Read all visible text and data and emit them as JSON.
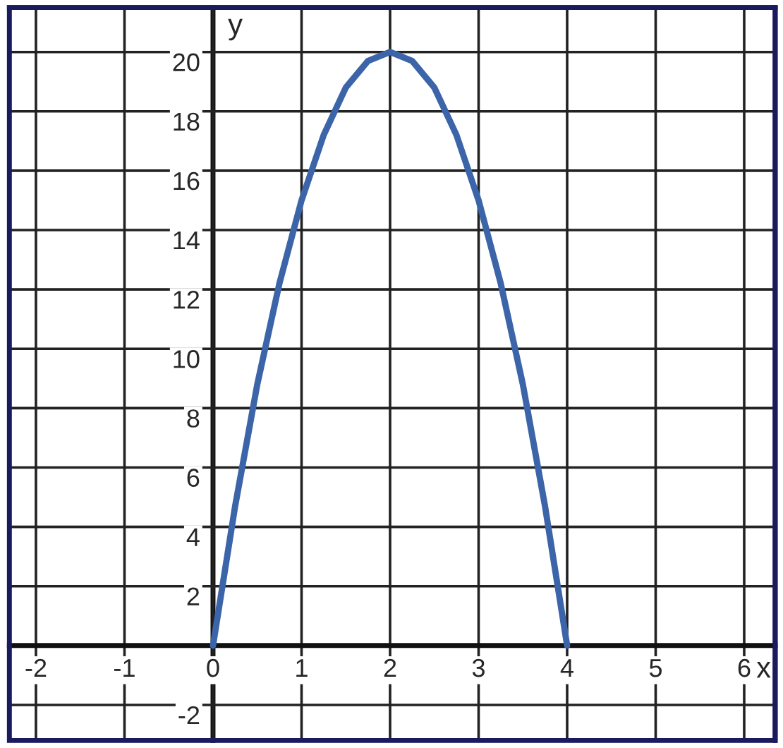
{
  "chart_data": {
    "type": "line",
    "xlabel": "x",
    "ylabel": "y",
    "x": [
      0,
      0.25,
      0.5,
      0.75,
      1,
      1.25,
      1.5,
      1.75,
      2,
      2.25,
      2.5,
      2.75,
      3,
      3.25,
      3.5,
      3.75,
      4
    ],
    "series": [
      {
        "color": "#3c64a8",
        "values": [
          0,
          4.7,
          8.8,
          12.2,
          15,
          17.2,
          18.8,
          19.7,
          20,
          19.7,
          18.8,
          17.2,
          15,
          12.2,
          8.8,
          4.7,
          0
        ]
      }
    ],
    "xlim": [
      -2.3,
      6.35
    ],
    "ylim": [
      -3.2,
      21.5
    ],
    "xticks": [
      -2,
      -1,
      0,
      1,
      2,
      3,
      4,
      5,
      6
    ],
    "yticks": [
      -2,
      {
        "value": 0,
        "label": null
      },
      2,
      4,
      6,
      8,
      10,
      12,
      14,
      16,
      18,
      20
    ],
    "grid": true,
    "marker": "none",
    "line_style": "solid",
    "legend": false
  }
}
